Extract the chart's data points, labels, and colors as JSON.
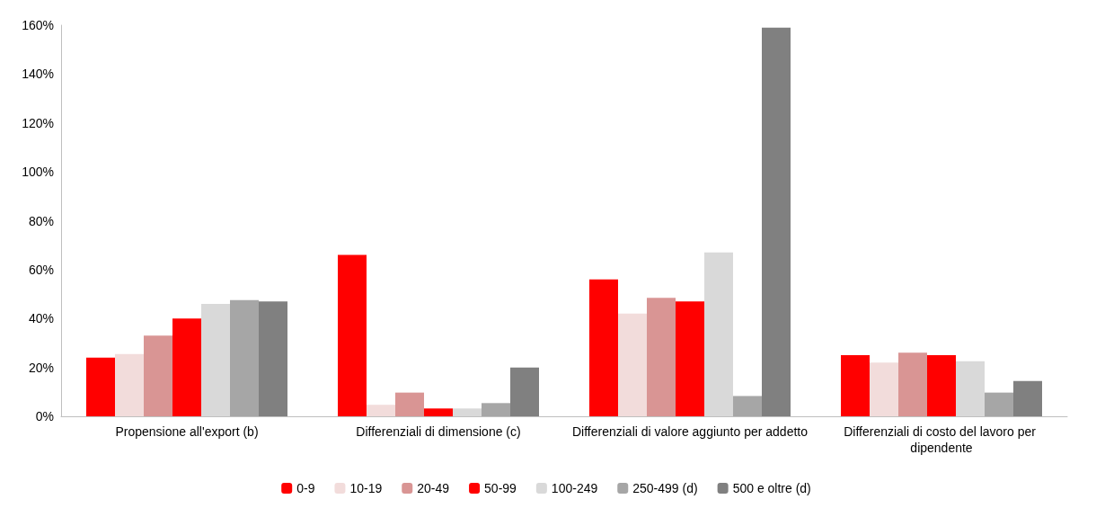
{
  "chart_data": {
    "type": "bar",
    "categories": [
      "Propensione all'export (b)",
      "Differenziali di dimensione (c)",
      "Differenziali di valore aggiunto per addetto",
      "Differenziali di costo del lavoro per dipendente"
    ],
    "series": [
      {
        "name": "0-9",
        "color": "#ff0000",
        "values": [
          24,
          66,
          56,
          25
        ]
      },
      {
        "name": "10-19",
        "color": "#f2dcdb",
        "values": [
          25.5,
          4.7,
          42,
          22
        ]
      },
      {
        "name": "20-49",
        "color": "#d99594",
        "values": [
          33,
          9.7,
          48.5,
          26
        ]
      },
      {
        "name": "50-99",
        "color": "#ff0000",
        "values": [
          40,
          3.2,
          47,
          25
        ]
      },
      {
        "name": "100-249",
        "color": "#d9d9d9",
        "values": [
          46,
          3.2,
          67,
          22.5
        ]
      },
      {
        "name": "250-499 (d)",
        "color": "#a6a6a6",
        "values": [
          47.5,
          5.4,
          8.3,
          9.7
        ]
      },
      {
        "name": "500 e oltre (d)",
        "color": "#808080",
        "values": [
          47,
          20,
          159,
          14.4
        ]
      }
    ],
    "ylim": [
      0,
      160
    ],
    "yticks": [
      {
        "value": 0,
        "label": "0%"
      },
      {
        "value": 20,
        "label": "20%"
      },
      {
        "value": 40,
        "label": "40%"
      },
      {
        "value": 60,
        "label": "60%"
      },
      {
        "value": 80,
        "label": "80%"
      },
      {
        "value": 100,
        "label": "100%"
      },
      {
        "value": 120,
        "label": "120%"
      },
      {
        "value": 140,
        "label": "140%"
      },
      {
        "value": 160,
        "label": "160%"
      }
    ],
    "grid": false,
    "legend": "bottom"
  }
}
